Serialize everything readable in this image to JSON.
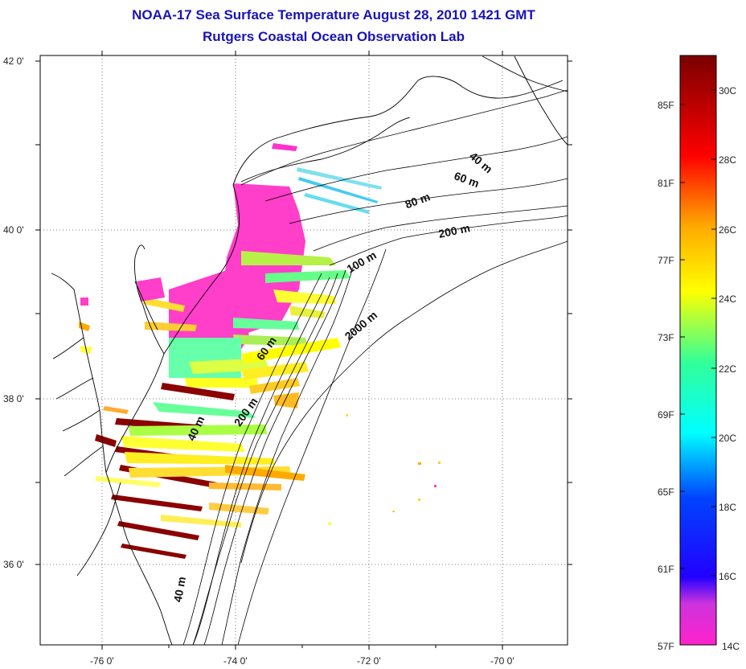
{
  "title_line1": "NOAA-17 Sea Surface Temperature August 28, 2010 1421 GMT",
  "title_line2": "Rutgers Coastal Ocean Observation Lab",
  "map": {
    "lat_labels": [
      "42 0'",
      "40 0'",
      "38 0'",
      "36 0'"
    ],
    "lon_labels": [
      "-76 0'",
      "-74 0'",
      "-72 0'",
      "-70 0'"
    ],
    "depth_labels": [
      "40 m",
      "60 m",
      "80 m",
      "200 m",
      "100 m",
      "2000 m",
      "60 m",
      "200 m",
      "40 m",
      "40 m"
    ],
    "land_color": "#ffffff",
    "contour_color": "#000000"
  },
  "colorbar": {
    "f_labels": [
      "85F",
      "81F",
      "77F",
      "73F",
      "69F",
      "65F",
      "61F",
      "57F"
    ],
    "c_labels": [
      "30C",
      "28C",
      "26C",
      "24C",
      "22C",
      "20C",
      "18C",
      "16C",
      "14C"
    ],
    "colors": [
      "#ff22cc",
      "#9933cc",
      "#0000ff",
      "#00ffff",
      "#33ff99",
      "#ffff00",
      "#ffaa00",
      "#ff0000",
      "#8b0000"
    ]
  }
}
